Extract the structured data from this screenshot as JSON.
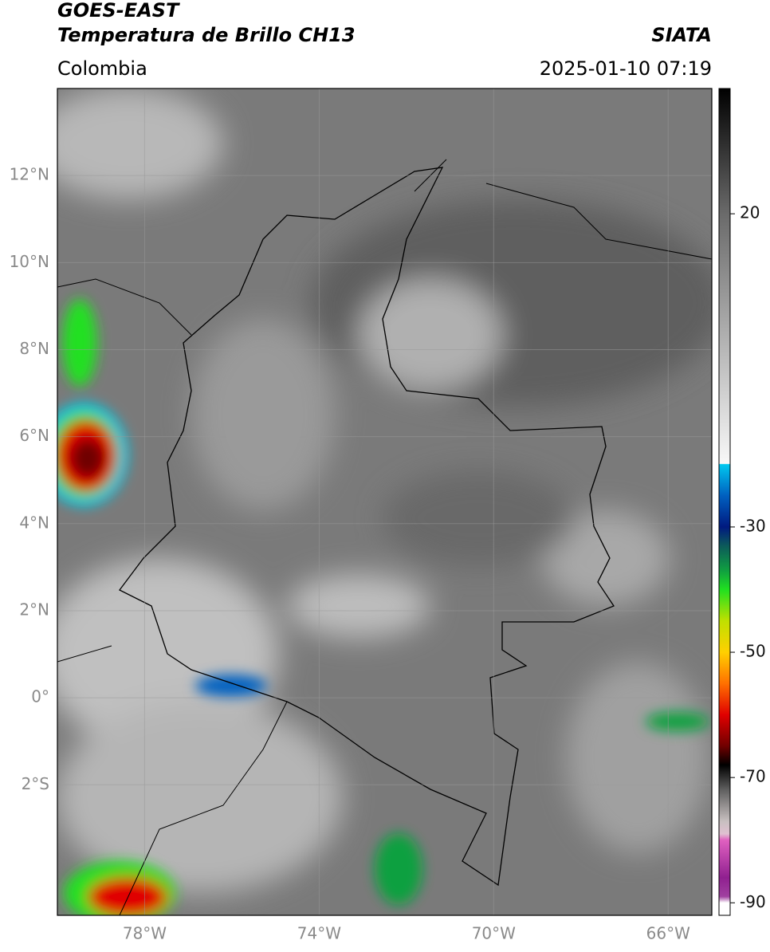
{
  "header": {
    "title": "GOES-EAST",
    "subtitle": "Temperatura de Brillo CH13",
    "source": "SIATA",
    "region": "Colombia",
    "timestamp": "2025-01-10 07:19"
  },
  "map": {
    "xlim": [
      -80,
      -65
    ],
    "ylim": [
      -5,
      14
    ],
    "xticks": [
      {
        "value": -78,
        "label": "78°W"
      },
      {
        "value": -74,
        "label": "74°W"
      },
      {
        "value": -70,
        "label": "70°W"
      },
      {
        "value": -66,
        "label": "66°W"
      }
    ],
    "yticks": [
      {
        "value": 12,
        "label": "12°N"
      },
      {
        "value": 10,
        "label": "10°N"
      },
      {
        "value": 8,
        "label": "8°N"
      },
      {
        "value": 6,
        "label": "6°N"
      },
      {
        "value": 4,
        "label": "4°N"
      },
      {
        "value": 2,
        "label": "2°N"
      },
      {
        "value": 0,
        "label": "0°"
      },
      {
        "value": -2,
        "label": "2°S"
      }
    ],
    "grid": true
  },
  "colorbar": {
    "lim": [
      -92,
      40
    ],
    "ticks": [
      20,
      -30,
      -50,
      -70,
      -90
    ],
    "stops": [
      {
        "value": 40,
        "color": "#000000"
      },
      {
        "value": 20,
        "color": "#6a6a6a"
      },
      {
        "value": -19.9,
        "color": "#f8f8f8"
      },
      {
        "value": -20,
        "color": "#00c8f0"
      },
      {
        "value": -25,
        "color": "#0060c0"
      },
      {
        "value": -30,
        "color": "#001a80"
      },
      {
        "value": -33,
        "color": "#0c5a5a"
      },
      {
        "value": -37,
        "color": "#10a040"
      },
      {
        "value": -40,
        "color": "#20e020"
      },
      {
        "value": -45,
        "color": "#c0e000"
      },
      {
        "value": -50,
        "color": "#ffd000"
      },
      {
        "value": -55,
        "color": "#ff7000"
      },
      {
        "value": -60,
        "color": "#e00000"
      },
      {
        "value": -65,
        "color": "#700000"
      },
      {
        "value": -68,
        "color": "#000000"
      },
      {
        "value": -72,
        "color": "#606060"
      },
      {
        "value": -77,
        "color": "#c8c0c0"
      },
      {
        "value": -79,
        "color": "#e0c0d0"
      },
      {
        "value": -80,
        "color": "#e060c0"
      },
      {
        "value": -86,
        "color": "#902090"
      },
      {
        "value": -89,
        "color": "#a040a0"
      },
      {
        "value": -90,
        "color": "#ffffff"
      },
      {
        "value": -92,
        "color": "#ffffff"
      }
    ]
  }
}
